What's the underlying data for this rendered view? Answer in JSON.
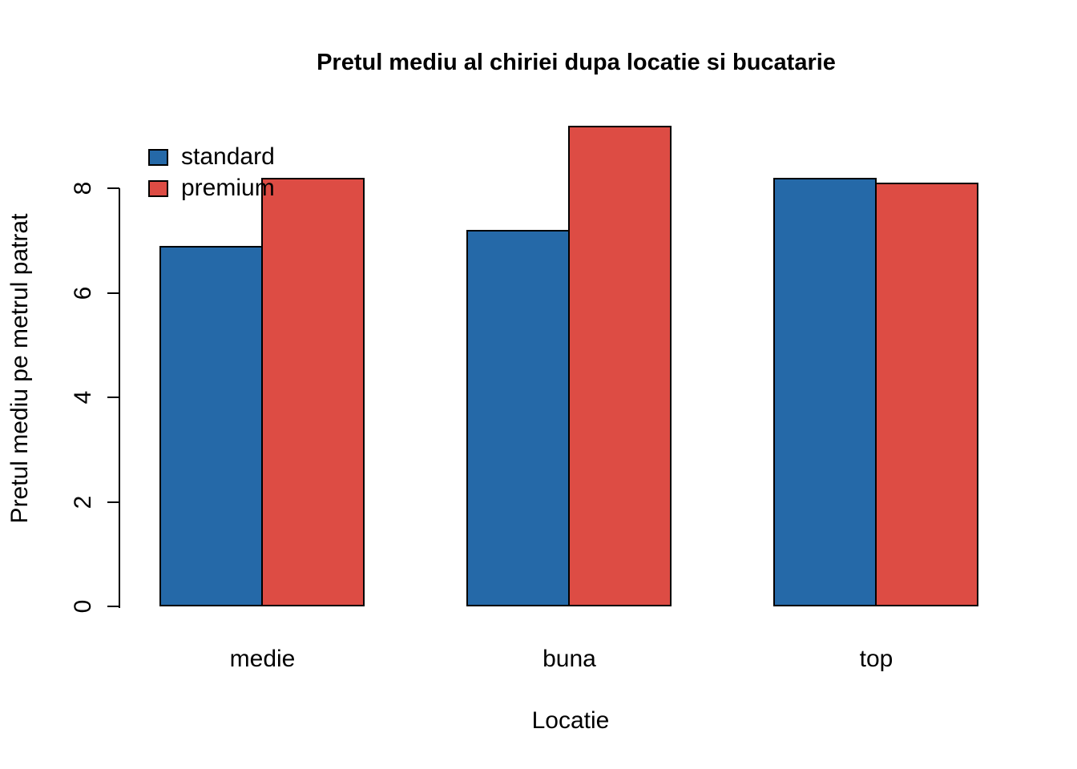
{
  "chart_data": {
    "type": "bar",
    "title": "Pretul mediu al chiriei dupa locatie si bucatarie",
    "xlabel": "Locatie",
    "ylabel": "Pretul mediu pe metrul patrat",
    "categories": [
      "medie",
      "buna",
      "top"
    ],
    "series": [
      {
        "name": "standard",
        "color": "#2569a8",
        "values": [
          6.9,
          7.2,
          8.2
        ]
      },
      {
        "name": "premium",
        "color": "#dd4c44",
        "values": [
          8.2,
          9.2,
          8.1
        ]
      }
    ],
    "yticks": [
      0,
      2,
      4,
      6,
      8
    ],
    "ylim": [
      0,
      9.3
    ],
    "grid": false,
    "legend_position": "top-left",
    "bar_border_color": "#000000",
    "background": "#ffffff"
  }
}
